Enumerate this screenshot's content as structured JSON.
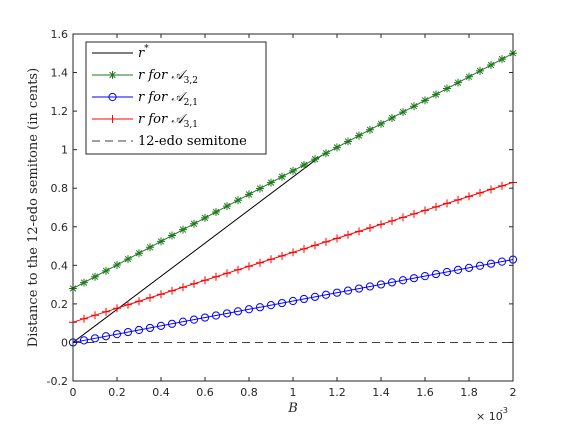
{
  "chart_data": {
    "type": "line",
    "xlabel": "B",
    "ylabel": "Distance to the 12-edo semitone (in cents)",
    "xlim": [
      0,
      0.002
    ],
    "ylim": [
      -0.2,
      1.6
    ],
    "x_ticks": [
      0,
      0.0002,
      0.0004,
      0.0006,
      0.0008,
      0.001,
      0.0012,
      0.0014,
      0.0016,
      0.0018,
      0.002
    ],
    "x_tick_labels": [
      "0",
      "0.2",
      "0.4",
      "0.6",
      "0.8",
      "1",
      "1.2",
      "1.4",
      "1.6",
      "1.8",
      "2"
    ],
    "x_exponent_base": "× 10",
    "x_exponent_power": "-3",
    "y_ticks": [
      -0.2,
      0,
      0.2,
      0.4,
      0.6,
      0.8,
      1,
      1.2,
      1.4,
      1.6
    ],
    "y_tick_labels": [
      "-0.2",
      "0",
      "0.2",
      "0.4",
      "0.6",
      "0.8",
      "1",
      "1.2",
      "1.4",
      "1.6"
    ],
    "grid": false,
    "legend_position": "top-left",
    "series": [
      {
        "name": "r*",
        "label_main": "r",
        "label_sup": "*",
        "label_sub": "",
        "color": "#000000",
        "line": "solid",
        "marker": "none",
        "x_start": 0,
        "y_start": 0,
        "x_end": 0.00113,
        "y_end": 0.97
      },
      {
        "name": "r for A3,2",
        "label_main": "r for 𝒜",
        "label_sup": "",
        "label_sub": "3,2",
        "color": "#1f7a1f",
        "line": "solid",
        "marker": "star",
        "x_start": 0,
        "y_start": 0.28,
        "x_end": 0.002,
        "y_end": 1.5,
        "n_points": 41
      },
      {
        "name": "r for A2,1",
        "label_main": "r for 𝒜",
        "label_sup": "",
        "label_sub": "2,1",
        "color": "#0000ff",
        "line": "solid",
        "marker": "circle",
        "x_start": 0,
        "y_start": 0,
        "x_end": 0.002,
        "y_end": 0.43,
        "n_points": 41
      },
      {
        "name": "r for A3,1",
        "label_main": "r for 𝒜",
        "label_sup": "",
        "label_sub": "3,1",
        "color": "#ff0000",
        "line": "solid",
        "marker": "plus",
        "x_start": 0,
        "y_start": 0.105,
        "x_end": 0.002,
        "y_end": 0.83,
        "n_points": 41
      },
      {
        "name": "12-edo semitone",
        "label_main": "12-edo semitone",
        "label_sup": "",
        "label_sub": "",
        "color": "#404040",
        "line": "dashed",
        "marker": "none",
        "x_start": 0,
        "y_start": 0,
        "x_end": 0.002,
        "y_end": 0
      }
    ]
  }
}
